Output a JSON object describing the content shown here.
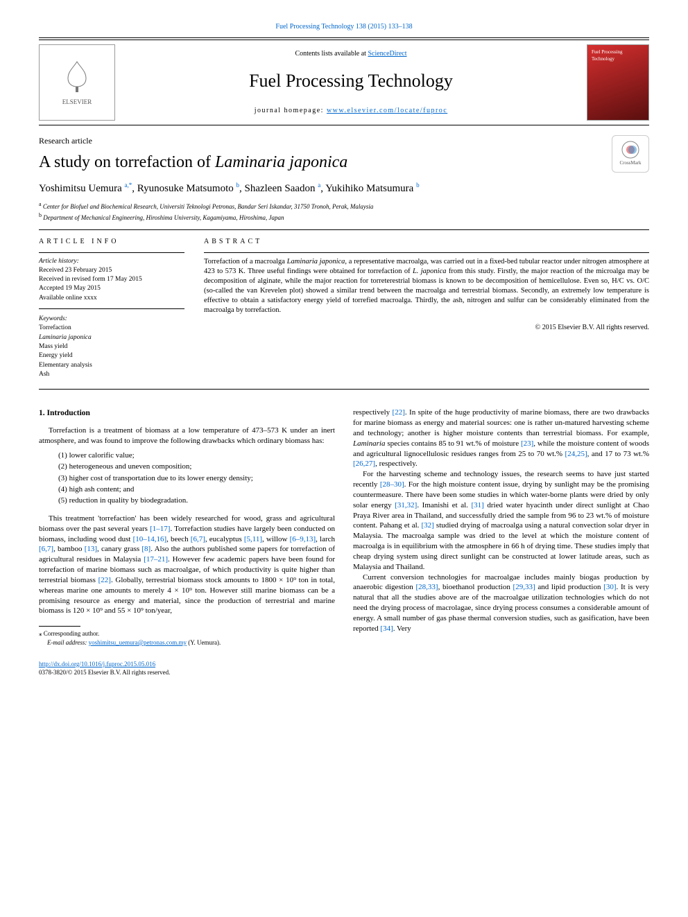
{
  "topLink": "Fuel Processing Technology 138 (2015) 133–138",
  "header": {
    "contentsPrefix": "Contents lists available at ",
    "contentsLink": "ScienceDirect",
    "journalTitle": "Fuel Processing Technology",
    "homepagePrefix": "journal homepage: ",
    "homepageLink": "www.elsevier.com/locate/fuproc",
    "publisher": "ELSEVIER",
    "badgeText": "Fuel Processing Technology"
  },
  "articleType": "Research article",
  "title": {
    "prefix": "A study on torrefaction of ",
    "italic": "Laminaria japonica"
  },
  "crossmark": "CrossMark",
  "authors": [
    {
      "name": "Yoshimitsu Uemura ",
      "sup": "a,",
      "star": "*"
    },
    {
      "name": ", Ryunosuke Matsumoto ",
      "sup": "b"
    },
    {
      "name": ", Shazleen Saadon ",
      "sup": "a"
    },
    {
      "name": ", Yukihiko Matsumura ",
      "sup": "b"
    }
  ],
  "affiliations": [
    {
      "sup": "a",
      "text": " Center for Biofuel and Biochemical Research, Universiti Teknologi Petronas, Bandar Seri Iskandar, 31750 Tronoh, Perak, Malaysia"
    },
    {
      "sup": "b",
      "text": " Department of Mechanical Engineering, Hiroshima University, Kagamiyama, Hiroshima, Japan"
    }
  ],
  "sections": {
    "infoHead": "article info",
    "abstractHead": "abstract"
  },
  "history": {
    "label": "Article history:",
    "received": "Received 23 February 2015",
    "revised": "Received in revised form 17 May 2015",
    "accepted": "Accepted 19 May 2015",
    "online": "Available online xxxx"
  },
  "keywords": {
    "label": "Keywords:",
    "items": [
      "Torrefaction",
      "Laminaria japonica",
      "Mass yield",
      "Energy yield",
      "Elementary analysis",
      "Ash"
    ]
  },
  "abstract": {
    "p1a": "Torrefaction of a macroalga ",
    "p1i1": "Laminaria japonica",
    "p1b": ", a representative macroalga, was carried out in a fixed-bed tubular reactor under nitrogen atmosphere at 423 to 573 K. Three useful findings were obtained for torrefaction of ",
    "p1i2": "L. japonica",
    "p1c": " from this study. Firstly, the major reaction of the microalga may be decomposition of alginate, while the major reaction for torreterestrial biomass is known to be decomposition of hemicellulose. Even so, H/C vs. O/C (so-called the van Krevelen plot) showed a similar trend between the macroalga and terrestrial biomass. Secondly, an extremely low temperature is effective to obtain a satisfactory energy yield of torrefied macroalga. Thirdly, the ash, nitrogen and sulfur can be considerably eliminated from the macroalga by torrefaction."
  },
  "copyright": "© 2015 Elsevier B.V. All rights reserved.",
  "introHead": "1. Introduction",
  "intro": {
    "lead": "Torrefaction is a treatment of biomass at a low temperature of 473–573 K under an inert atmosphere, and was found to improve the following drawbacks which ordinary biomass has:",
    "list": [
      "(1) lower calorific value;",
      "(2) heterogeneous and uneven composition;",
      "(3) higher cost of transportation due to its lower energy density;",
      "(4) high ash content; and",
      "(5) reduction in quality by biodegradation."
    ]
  },
  "bodyLeft": {
    "p1a": "This treatment 'torrefaction' has been widely researched for wood, grass and agricultural biomass over the past several years ",
    "r1": "[1–17]",
    "p1b": ". Torrefaction studies have largely been conducted on biomass, including wood dust ",
    "r2": "[10–14,16]",
    "p1c": ", beech ",
    "r3": "[6,7]",
    "p1d": ", eucalyptus ",
    "r4": "[5,11]",
    "p1e": ", willow ",
    "r5": "[6–9,13]",
    "p1f": ", larch ",
    "r6": "[6,7]",
    "p1g": ", bamboo ",
    "r7": "[13]",
    "p1h": ", canary grass ",
    "r8": "[8]",
    "p1i": ". Also the authors published some papers for torrefaction of agricultural residues in Malaysia ",
    "r9": "[17–21]",
    "p1j": ". However few academic papers have been found for torrefaction of marine biomass such as macroalgae, of which productivity is quite higher than terrestrial biomass ",
    "r10": "[22]",
    "p1k": ". Globally, terrestrial biomass stock amounts to 1800 × 10⁹ ton in total, whereas marine one amounts to merely 4 × 10⁹ ton. However still marine biomass can be a promising resource as energy and material, since the production of terrestrial and marine biomass is 120 × 10⁹ and 55 × 10⁹ ton/year,"
  },
  "bodyRight": {
    "p1a": "respectively ",
    "r1": "[22]",
    "p1b": ". In spite of the huge productivity of marine biomass, there are two drawbacks for marine biomass as energy and material sources: one is rather un-matured harvesting scheme and technology; another is higher moisture contents than terrestrial biomass. For example, ",
    "p1i1": "Laminaria",
    "p1c": " species contains 85 to 91 wt.% of moisture ",
    "r2": "[23]",
    "p1d": ", while the moisture content of woods and agricultural lignocellulosic residues ranges from 25 to 70 wt.% ",
    "r3": "[24,25]",
    "p1e": ", and 17 to 73 wt.% ",
    "r4": "[26,27]",
    "p1f": ", respectively.",
    "p2a": "For the harvesting scheme and technology issues, the research seems to have just started recently ",
    "r5": "[28–30]",
    "p2b": ". For the high moisture content issue, drying by sunlight may be the promising countermeasure. There have been some studies in which water-borne plants were dried by only solar energy ",
    "r6": "[31,32]",
    "p2c": ". Imanishi et al. ",
    "r7": "[31]",
    "p2d": " dried water hyacinth under direct sunlight at Chao Praya River area in Thailand, and successfully dried the sample from 96 to 23 wt.% of moisture content. Pahang et al. ",
    "r8": "[32]",
    "p2e": " studied drying of macroalga using a natural convection solar dryer in Malaysia. The macroalga sample was dried to the level at which the moisture content of macroalga is in equilibrium with the atmosphere in 66 h of drying time. These studies imply that cheap drying system using direct sunlight can be constructed at lower latitude areas, such as Malaysia and Thailand.",
    "p3a": "Current conversion technologies for macroalgae includes mainly biogas production by anaerobic digestion ",
    "r9": "[28,33]",
    "p3b": ", bioethanol production ",
    "r10": "[29,33]",
    "p3c": " and lipid production ",
    "r11": "[30]",
    "p3d": ". It is very natural that all the studies above are of the macroalgae utilization technologies which do not need the drying process of macrolagae, since drying process consumes a considerable amount of energy. A small number of gas phase thermal conversion studies, such as gasification, have been reported ",
    "r12": "[34]",
    "p3e": ". Very"
  },
  "footnote": {
    "star": "⁎ Corresponding author.",
    "emailLabel": "E-mail address: ",
    "email": "yoshimitsu_uemura@petronas.com.my",
    "emailSuffix": " (Y. Uemura)."
  },
  "footer": {
    "doi": "http://dx.doi.org/10.1016/j.fuproc.2015.05.016",
    "issn": "0378-3820/© 2015 Elsevier B.V. All rights reserved."
  }
}
